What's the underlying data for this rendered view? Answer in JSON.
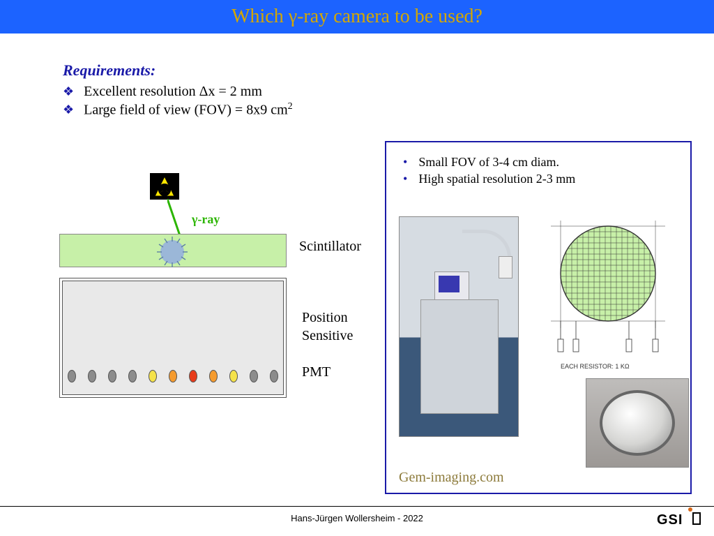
{
  "title": "Which γ-ray camera to be used?",
  "colors": {
    "title_bar": "#1c63ff",
    "title_text": "#d4a700",
    "accent": "#1a1aa8",
    "gamma": "#2bb500",
    "scint": "#c7f0a8",
    "pmt": "#e9e9e9",
    "link": "#8c7a3a"
  },
  "requirements": {
    "heading": "Requirements:",
    "items": [
      "Excellent resolution Δx = 2 mm",
      "Large field of view (FOV) = 8x9 cm"
    ],
    "sup_on_item2": "2"
  },
  "left_diagram": {
    "gamma_label": "γ-ray",
    "scint_label": "Scintillator",
    "pmt_label_l1": "Position",
    "pmt_label_l2": "Sensitive",
    "pmt_label_l3": "PMT",
    "oval_colors": [
      "#8c8c8c",
      "#8c8c8c",
      "#8c8c8c",
      "#8c8c8c",
      "#f5e24a",
      "#f59b2e",
      "#e83b1a",
      "#f59b2e",
      "#f5e24a",
      "#8c8c8c",
      "#8c8c8c"
    ]
  },
  "right_box": {
    "bullets": [
      "Small FOV of 3-4 cm diam.",
      "High spatial resolution 2-3 mm"
    ],
    "resistor_note": "EACH RESISTOR: 1 KΩ",
    "link": "Gem-imaging.com"
  },
  "footer": "Hans-Jürgen Wollersheim - 2022",
  "logo": "GSI"
}
